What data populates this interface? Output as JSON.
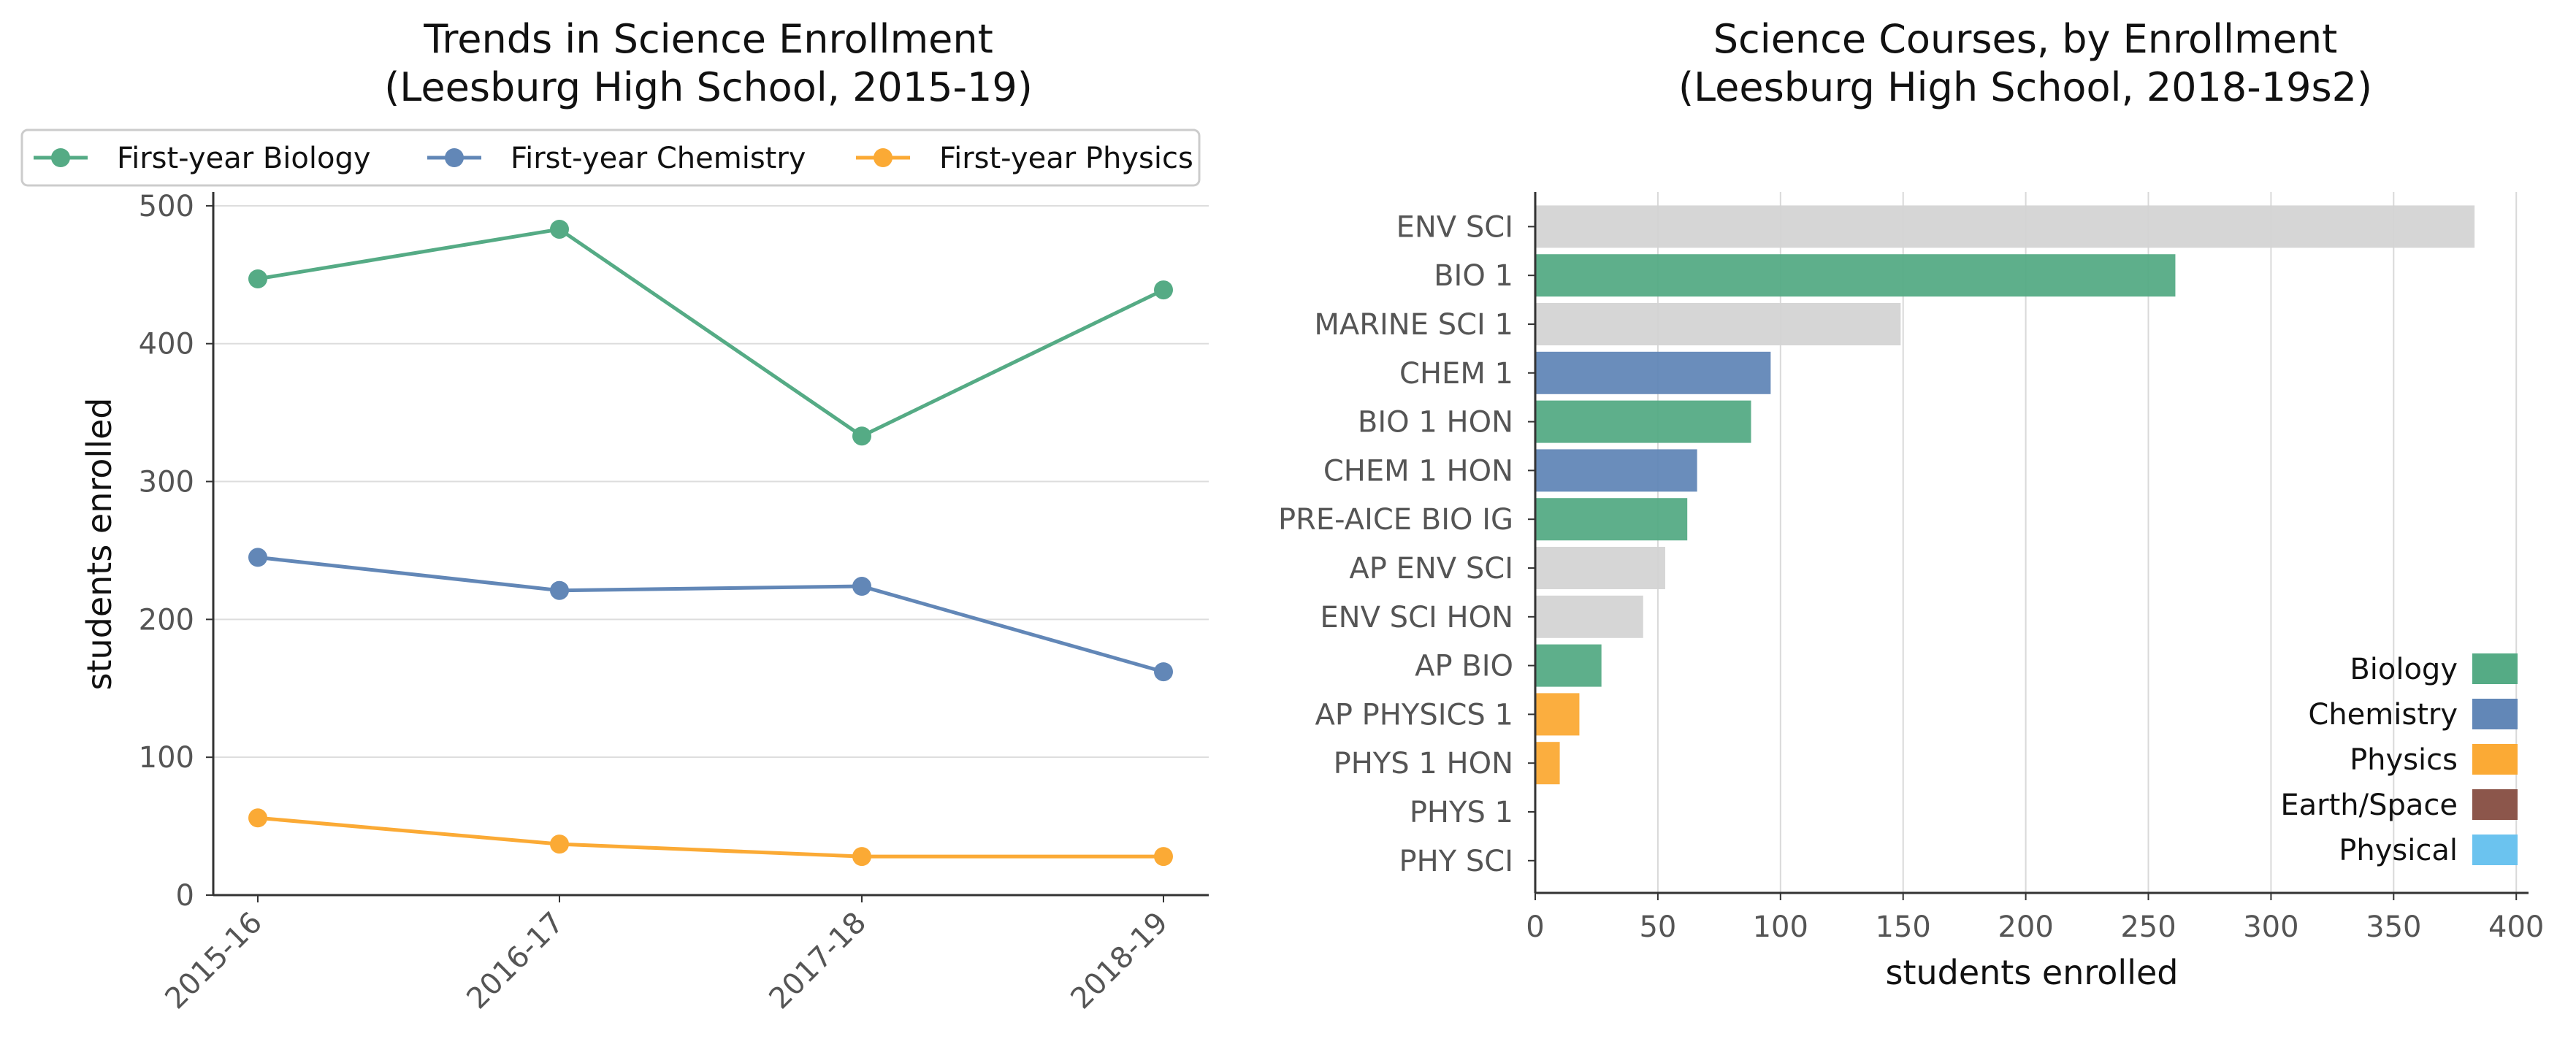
{
  "chart_data": [
    {
      "type": "line",
      "title_lines": [
        "Trends in Science Enrollment",
        "(Leesburg High School, 2015-19)"
      ],
      "ylabel": "students enrolled",
      "xlabel": "",
      "categories": [
        "2015-16",
        "2016-17",
        "2017-18",
        "2018-19"
      ],
      "ylim": [
        0,
        510
      ],
      "yticks": [
        0,
        100,
        200,
        300,
        400,
        500
      ],
      "grid": "horizontal",
      "legend_position": "top",
      "series": [
        {
          "name": "First-year Biology",
          "color": "#55ab85",
          "values": [
            447,
            483,
            333,
            439
          ]
        },
        {
          "name": "First-year Chemistry",
          "color": "#6287b7",
          "values": [
            245,
            221,
            224,
            162
          ]
        },
        {
          "name": "First-year Physics",
          "color": "#fbaa35",
          "values": [
            56,
            37,
            28,
            28
          ]
        }
      ]
    },
    {
      "type": "bar",
      "orientation": "horizontal",
      "title_lines": [
        "Science Courses, by Enrollment",
        "(Leesburg High School, 2018-19s2)"
      ],
      "xlabel": "students enrolled",
      "xlim": [
        0,
        405
      ],
      "xticks": [
        0,
        50,
        100,
        150,
        200,
        250,
        300,
        350,
        400
      ],
      "grid": "vertical",
      "legend_position": "lower-right",
      "categories": [
        "ENV SCI",
        "BIO 1",
        "MARINE SCI 1",
        "CHEM 1",
        "BIO 1 HON",
        "CHEM 1 HON",
        "PRE-AICE BIO IG",
        "AP ENV SCI",
        "ENV SCI HON",
        "AP BIO",
        "AP PHYSICS 1",
        "PHYS 1 HON",
        "PHYS 1",
        "PHY SCI"
      ],
      "values": [
        383,
        261,
        149,
        96,
        88,
        66,
        62,
        53,
        44,
        27,
        18,
        10,
        0,
        0
      ],
      "groups": [
        "Other",
        "Biology",
        "Other",
        "Chemistry",
        "Biology",
        "Chemistry",
        "Biology",
        "Other",
        "Other",
        "Biology",
        "Physics",
        "Physics",
        "Physics",
        "Physical"
      ],
      "group_colors": {
        "Biology": "#55ab85",
        "Chemistry": "#6287b7",
        "Physics": "#fbaa35",
        "Earth/Space": "#8c564b",
        "Physical": "#6bc3ef",
        "Other": "#d4d4d4"
      },
      "legend": [
        "Biology",
        "Chemistry",
        "Physics",
        "Earth/Space",
        "Physical"
      ]
    }
  ]
}
